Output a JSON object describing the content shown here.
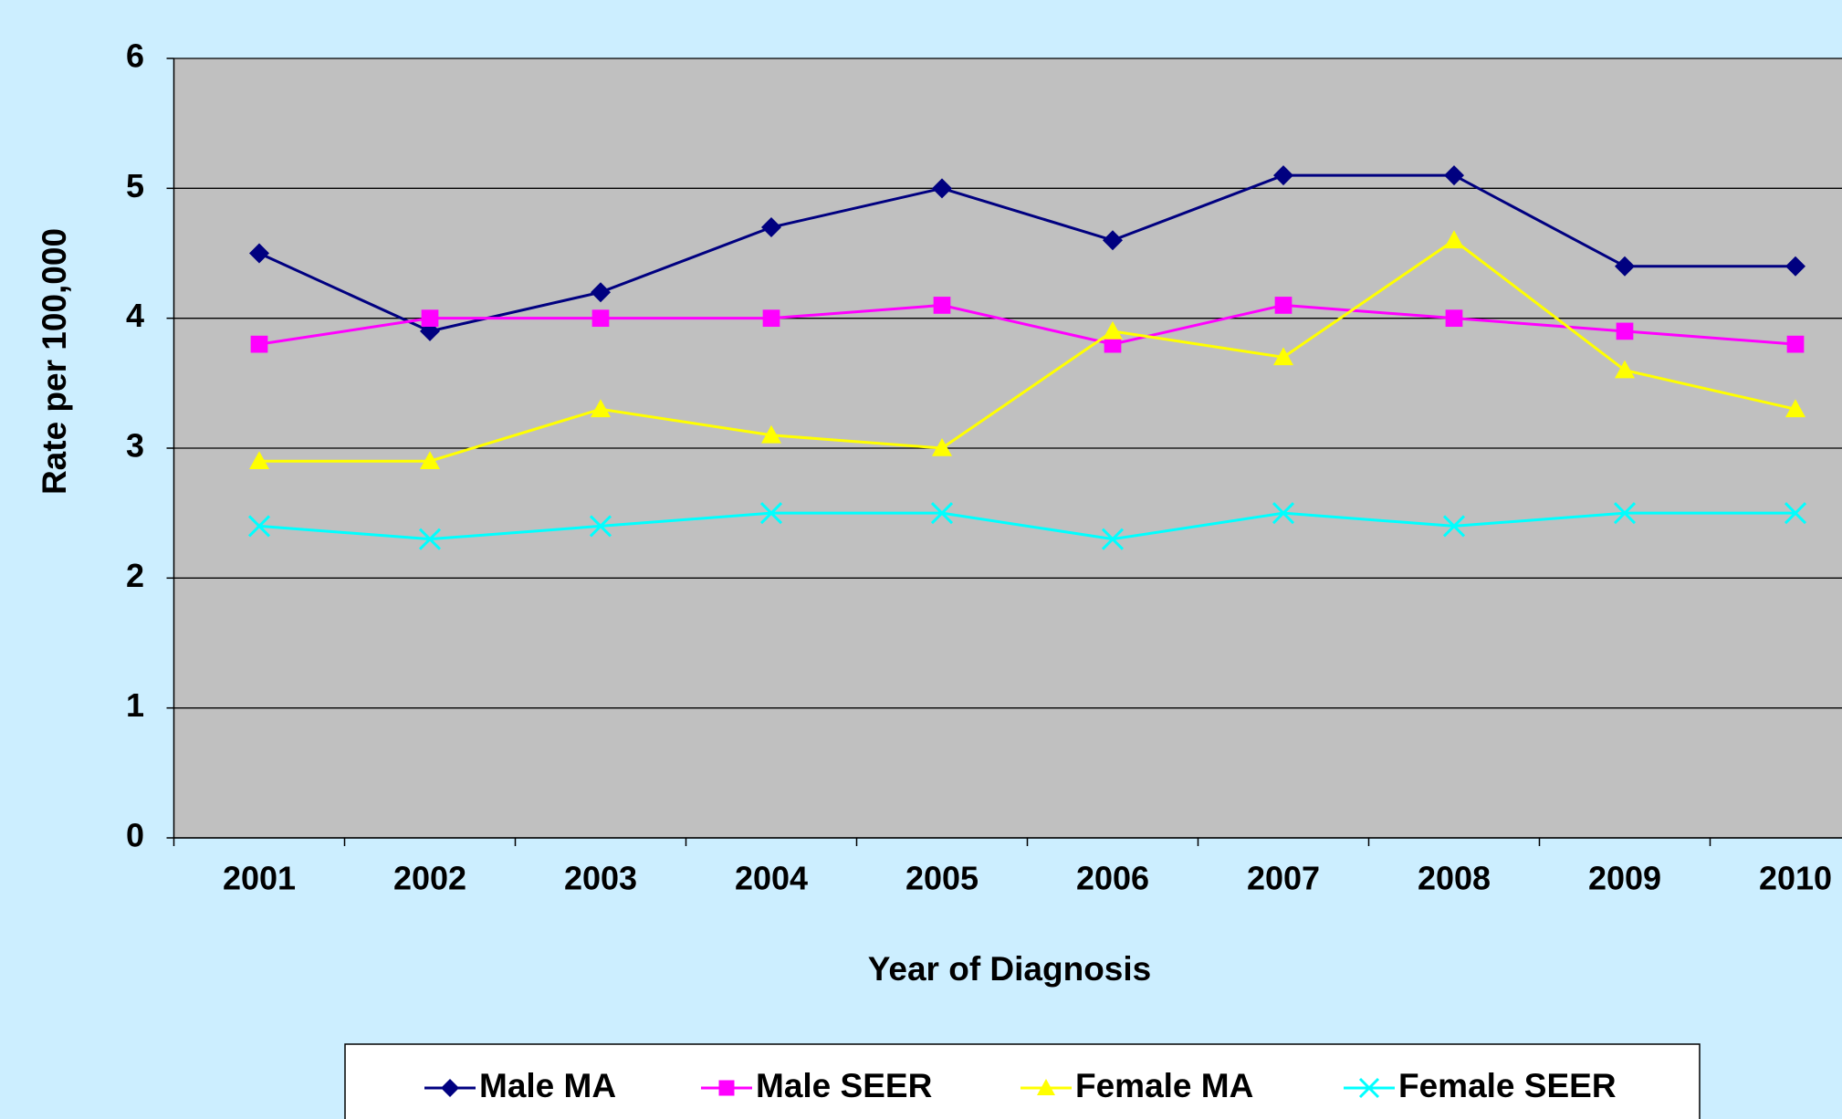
{
  "chart_data": {
    "type": "line",
    "x_label": "Year of Diagnosis",
    "y_label": "Rate per 100,000",
    "categories": [
      "2001",
      "2002",
      "2003",
      "2004",
      "2005",
      "2006",
      "2007",
      "2008",
      "2009",
      "2010"
    ],
    "series": [
      {
        "name": "Male MA",
        "color": "#000080",
        "marker": "diamond",
        "values": [
          4.5,
          3.9,
          4.2,
          4.7,
          5.0,
          4.6,
          5.1,
          5.1,
          4.4,
          4.4
        ]
      },
      {
        "name": "Male SEER",
        "color": "#ff00ff",
        "marker": "square",
        "values": [
          3.8,
          4.0,
          4.0,
          4.0,
          4.1,
          3.8,
          4.1,
          4.0,
          3.9,
          3.8
        ]
      },
      {
        "name": "Female MA",
        "color": "#ffff00",
        "marker": "triangle",
        "values": [
          2.9,
          2.9,
          3.3,
          3.1,
          3.0,
          3.9,
          3.7,
          4.6,
          3.6,
          3.3
        ]
      },
      {
        "name": "Female SEER",
        "color": "#00ffff",
        "marker": "x",
        "values": [
          2.4,
          2.3,
          2.4,
          2.5,
          2.5,
          2.3,
          2.5,
          2.4,
          2.5,
          2.5
        ]
      }
    ],
    "ylim": [
      0,
      6
    ],
    "yticks": [
      0,
      1,
      2,
      3,
      4,
      5,
      6
    ],
    "grid": true,
    "legend": "bottom"
  }
}
